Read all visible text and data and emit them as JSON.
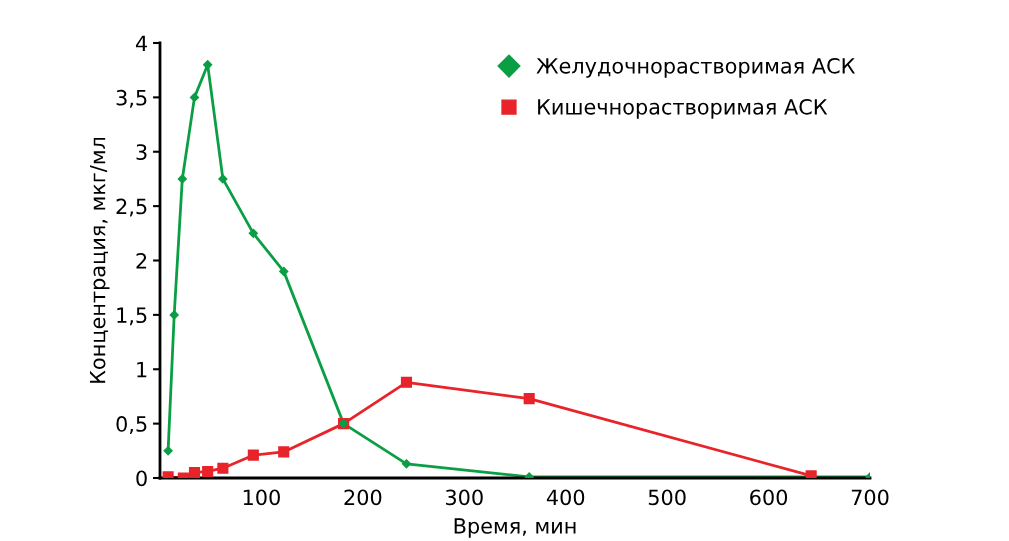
{
  "chart_data": {
    "type": "line",
    "xlabel": "Время, мин",
    "ylabel": "Концентрация, мкг/мл",
    "xlim": [
      0,
      700
    ],
    "xticks": [
      100,
      200,
      300,
      400,
      500,
      600,
      700
    ],
    "ylim": [
      0,
      4
    ],
    "yticks": [
      {
        "value": 0,
        "label": "0"
      },
      {
        "value": 0.5,
        "label": "0,5"
      },
      {
        "value": 1,
        "label": "1"
      },
      {
        "value": 1.5,
        "label": "1,5"
      },
      {
        "value": 2,
        "label": "2"
      },
      {
        "value": 2.5,
        "label": "2,5"
      },
      {
        "value": 3,
        "label": "3"
      },
      {
        "value": 3.5,
        "label": "3,5"
      },
      {
        "value": 4,
        "label": "4"
      }
    ],
    "grid": false,
    "legend": "top right",
    "series": [
      {
        "name": "Желудочнорастворимая АСК",
        "color": "#0a9e45",
        "marker": "diamond",
        "x": [
          8,
          14,
          22,
          34,
          47,
          62,
          92,
          122,
          181,
          243,
          364,
          700
        ],
        "values": [
          0.25,
          1.5,
          2.75,
          3.5,
          3.8,
          2.75,
          2.25,
          1.9,
          0.5,
          0.13,
          0.01,
          0.01
        ]
      },
      {
        "name": "Кишечнорастворимая АСК",
        "color": "#e8232a",
        "marker": "square",
        "x": [
          8,
          23,
          34,
          47,
          62,
          92,
          122,
          181,
          243,
          364,
          642
        ],
        "values": [
          0.01,
          0,
          0.05,
          0.06,
          0.09,
          0.21,
          0.24,
          0.5,
          0.88,
          0.73,
          0.02
        ]
      }
    ]
  }
}
